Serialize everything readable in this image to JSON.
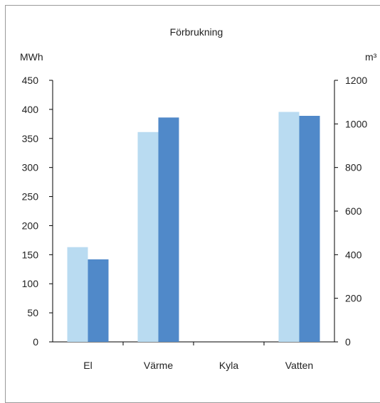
{
  "chart_data": {
    "type": "bar",
    "title": "Förbrukning",
    "categories": [
      "El",
      "Värme",
      "Kyla",
      "Vatten"
    ],
    "y_left": {
      "unit_label": "MWh",
      "ylim": [
        0,
        450
      ],
      "ticks": [
        0,
        50,
        100,
        150,
        200,
        250,
        300,
        350,
        400,
        450
      ]
    },
    "y_right": {
      "unit_label": "m³",
      "ylim": [
        0,
        1200
      ],
      "ticks": [
        0,
        200,
        400,
        600,
        800,
        1000,
        1200
      ]
    },
    "series": [
      {
        "color": "#b9dbf1",
        "values": [
          163,
          361,
          null,
          1055
        ],
        "axis": [
          "left",
          "left",
          "left",
          "right"
        ]
      },
      {
        "color": "#5089c9",
        "values": [
          142,
          386,
          null,
          1037
        ],
        "axis": [
          "left",
          "left",
          "left",
          "right"
        ]
      }
    ],
    "grid": false,
    "legend": "none"
  }
}
